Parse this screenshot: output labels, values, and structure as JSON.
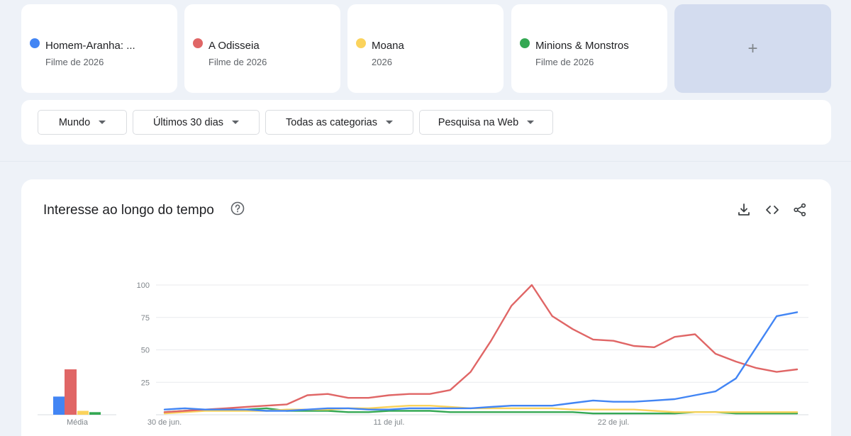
{
  "terms": [
    {
      "name": "Homem-Aranha: ...",
      "subtitle": "Filme de 2026",
      "color": "#4285f4"
    },
    {
      "name": "A Odisseia",
      "subtitle": "Filme de 2026",
      "color": "#e06666"
    },
    {
      "name": "Moana",
      "subtitle": "2026",
      "color": "#fbd35c"
    },
    {
      "name": "Minions & Monstros",
      "subtitle": "Filme de 2026",
      "color": "#34a853"
    }
  ],
  "add_term_label": "+",
  "filters": {
    "region": "Mundo",
    "period": "Últimos 30 dias",
    "category": "Todas as categorias",
    "search_type": "Pesquisa na Web"
  },
  "chart_card": {
    "title": "Interesse ao longo do tempo",
    "help_icon": "help-circle-icon",
    "tools": [
      "download-icon",
      "embed-code-icon",
      "share-icon"
    ]
  },
  "chart_data": [
    {
      "type": "bar",
      "categories": [
        "Homem-Aranha: ...",
        "A Odisseia",
        "Moana",
        "Minions & Monstros"
      ],
      "values": [
        14,
        35,
        3,
        2
      ],
      "xlabel": "Média",
      "ylim": [
        0,
        100
      ]
    },
    {
      "type": "line",
      "x_tick_labels": [
        "30 de jun.",
        "11 de jul.",
        "22 de jul."
      ],
      "y_ticks": [
        25,
        50,
        75,
        100
      ],
      "ylim": [
        0,
        100
      ],
      "grid": true,
      "series": [
        {
          "name": "Homem-Aranha: ...",
          "color": "#4285f4",
          "values": [
            4,
            5,
            4,
            4,
            4,
            3,
            3,
            4,
            5,
            5,
            4,
            4,
            5,
            5,
            5,
            5,
            6,
            7,
            7,
            7,
            9,
            11,
            10,
            10,
            11,
            12,
            15,
            18,
            28,
            52,
            76,
            79
          ]
        },
        {
          "name": "A Odisseia",
          "color": "#e06666",
          "values": [
            2,
            3,
            4,
            5,
            6,
            7,
            8,
            15,
            16,
            13,
            13,
            15,
            16,
            16,
            19,
            33,
            57,
            84,
            100,
            76,
            66,
            58,
            57,
            53,
            52,
            60,
            62,
            47,
            41,
            36,
            33,
            35
          ]
        },
        {
          "name": "Moana",
          "color": "#fbd35c",
          "values": [
            1,
            2,
            3,
            3,
            3,
            3,
            4,
            4,
            4,
            5,
            5,
            6,
            7,
            7,
            6,
            5,
            5,
            5,
            5,
            5,
            4,
            4,
            4,
            4,
            3,
            2,
            2,
            2,
            2,
            2,
            2,
            2
          ]
        },
        {
          "name": "Minions & Monstros",
          "color": "#34a853",
          "values": [
            2,
            3,
            4,
            4,
            4,
            5,
            3,
            3,
            3,
            2,
            2,
            3,
            3,
            3,
            2,
            2,
            2,
            2,
            2,
            2,
            2,
            1,
            1,
            1,
            1,
            1,
            2,
            2,
            1,
            1,
            1,
            1
          ]
        }
      ]
    }
  ]
}
